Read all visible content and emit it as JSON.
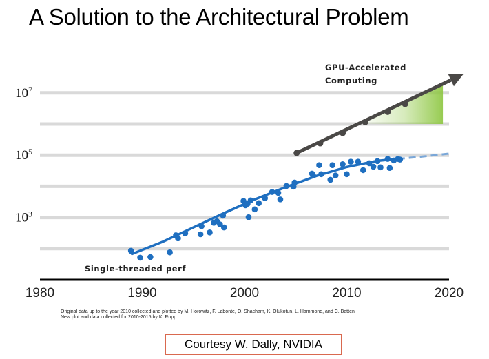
{
  "slide": {
    "title": "A Solution to the Architectural Problem",
    "credit_line1": "Original data up to the year 2010 collected and plotted by M. Horowitz, F. Labonte, O. Shacham, K. Olukotun, L. Hammond, and C. Batten",
    "credit_line2": "New plot and data collected for 2010-2015 by K. Rupp",
    "courtesy": "Courtesy W. Dally, NVIDIA"
  },
  "colors": {
    "gpu_line": "#4a4846",
    "gpu_fill": "#8cc63f",
    "cpu_series": "#1f6fc0",
    "cpu_projection": "#7aa7d8",
    "gridline": "#d9d9d9",
    "axis": "#000000",
    "courtesy_border": "#d9694f"
  },
  "chart_data": {
    "type": "scatter",
    "title": "",
    "xlabel": "",
    "ylabel": "",
    "x_ticks": [
      "1980",
      "1990",
      "2000",
      "2010",
      "2020"
    ],
    "xlim": [
      1980,
      2020
    ],
    "y_scale": "log10",
    "ylim_exponent": [
      1,
      8
    ],
    "y_ticks": [
      {
        "base": "10",
        "exp": "7",
        "value_exponent": 7
      },
      {
        "base": "10",
        "exp": "5",
        "value_exponent": 5
      },
      {
        "base": "10",
        "exp": "3",
        "value_exponent": 3
      }
    ],
    "grid": true,
    "annotations": {
      "gpu": [
        "GPU-Accelerated",
        "Computing"
      ],
      "cpu": "Single-threaded perf"
    },
    "series": [
      {
        "name": "Single-threaded perf",
        "kind": "scatter",
        "points_log10": [
          [
            1988.9,
            1.93
          ],
          [
            1989.8,
            1.71
          ],
          [
            1990.8,
            1.73
          ],
          [
            1992.7,
            1.88
          ],
          [
            1993.3,
            2.43
          ],
          [
            1993.5,
            2.33
          ],
          [
            1994.2,
            2.49
          ],
          [
            1995.7,
            2.46
          ],
          [
            1995.8,
            2.72
          ],
          [
            1996.6,
            2.52
          ],
          [
            1997.0,
            2.83
          ],
          [
            1997.3,
            2.88
          ],
          [
            1997.6,
            2.78
          ],
          [
            1997.9,
            3.06
          ],
          [
            1998.0,
            2.68
          ],
          [
            1999.9,
            3.53
          ],
          [
            2000.1,
            3.39
          ],
          [
            2000.3,
            3.44
          ],
          [
            2000.4,
            3.01
          ],
          [
            2000.6,
            3.55
          ],
          [
            2001.0,
            3.26
          ],
          [
            2001.4,
            3.46
          ],
          [
            2002.0,
            3.62
          ],
          [
            2002.7,
            3.82
          ],
          [
            2003.3,
            3.79
          ],
          [
            2003.5,
            3.58
          ],
          [
            2004.1,
            4.01
          ],
          [
            2004.8,
            3.99
          ],
          [
            2004.9,
            4.12
          ],
          [
            2006.6,
            4.41
          ],
          [
            2006.7,
            4.35
          ],
          [
            2007.3,
            4.68
          ],
          [
            2007.5,
            4.39
          ],
          [
            2008.4,
            4.21
          ],
          [
            2008.6,
            4.68
          ],
          [
            2008.9,
            4.35
          ],
          [
            2009.6,
            4.71
          ],
          [
            2010.0,
            4.39
          ],
          [
            2010.4,
            4.79
          ],
          [
            2011.1,
            4.79
          ],
          [
            2011.6,
            4.52
          ],
          [
            2012.2,
            4.74
          ],
          [
            2012.6,
            4.63
          ],
          [
            2013.0,
            4.81
          ],
          [
            2013.3,
            4.61
          ],
          [
            2014.0,
            4.88
          ],
          [
            2014.2,
            4.59
          ],
          [
            2014.6,
            4.83
          ],
          [
            2015.0,
            4.88
          ],
          [
            2015.2,
            4.86
          ]
        ]
      },
      {
        "name": "Single-threaded perf",
        "kind": "trend",
        "points_log10": [
          [
            1989,
            1.83
          ],
          [
            1992,
            2.22
          ],
          [
            1995,
            2.68
          ],
          [
            1998,
            3.14
          ],
          [
            2001,
            3.58
          ],
          [
            2004,
            3.97
          ],
          [
            2007,
            4.33
          ],
          [
            2010,
            4.62
          ],
          [
            2013,
            4.82
          ],
          [
            2015,
            4.88
          ]
        ]
      },
      {
        "name": "Single-threaded perf",
        "kind": "projection",
        "points_log10": [
          [
            2015,
            4.88
          ],
          [
            2017,
            4.94
          ],
          [
            2020,
            5.05
          ]
        ]
      },
      {
        "name": "GPU-Accelerated Computing",
        "kind": "line_markers",
        "points_log10": [
          [
            2005.1,
            5.07
          ],
          [
            2007.4,
            5.38
          ],
          [
            2009.6,
            5.71
          ],
          [
            2011.8,
            6.06
          ],
          [
            2014.0,
            6.39
          ],
          [
            2015.7,
            6.64
          ]
        ],
        "arrow_to": [
          2021.4,
          7.6
        ]
      }
    ]
  }
}
